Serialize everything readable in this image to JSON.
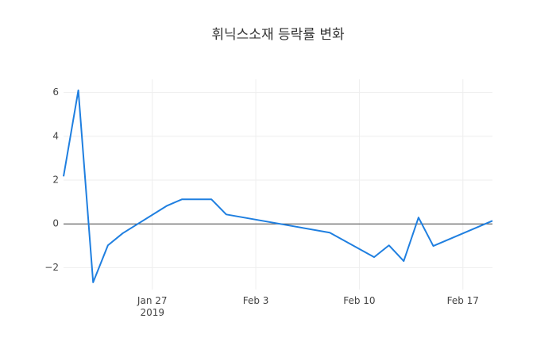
{
  "chart_data": {
    "type": "line",
    "title": "휘닉스소재 등락률 변화",
    "x": [
      "2019-01-21",
      "2019-01-22",
      "2019-01-23",
      "2019-01-24",
      "2019-01-25",
      "2019-01-28",
      "2019-01-29",
      "2019-01-30",
      "2019-01-31",
      "2019-02-01",
      "2019-02-08",
      "2019-02-11",
      "2019-02-12",
      "2019-02-13",
      "2019-02-14",
      "2019-02-15",
      "2019-02-19"
    ],
    "series": [
      {
        "name": "등락률",
        "color": "#1f7fe0",
        "values": [
          2.17,
          6.1,
          -2.67,
          -0.98,
          -0.43,
          0.83,
          1.12,
          1.12,
          1.12,
          0.43,
          -0.4,
          -1.52,
          -0.98,
          -1.7,
          0.29,
          -1.01,
          0.14
        ]
      }
    ],
    "xlim": [
      "2019-01-21",
      "2019-02-19"
    ],
    "xticks": [
      {
        "value": "2019-01-27",
        "label": "Jan 27\n2019"
      },
      {
        "value": "2019-02-03",
        "label": "Feb 3"
      },
      {
        "value": "2019-02-10",
        "label": "Feb 10"
      },
      {
        "value": "2019-02-17",
        "label": "Feb 17"
      }
    ],
    "ylim": [
      -3,
      6.6
    ],
    "yticks": [
      {
        "value": -2,
        "label": "−2"
      },
      0,
      2,
      4,
      6
    ],
    "grid": true,
    "zeroline": true
  }
}
